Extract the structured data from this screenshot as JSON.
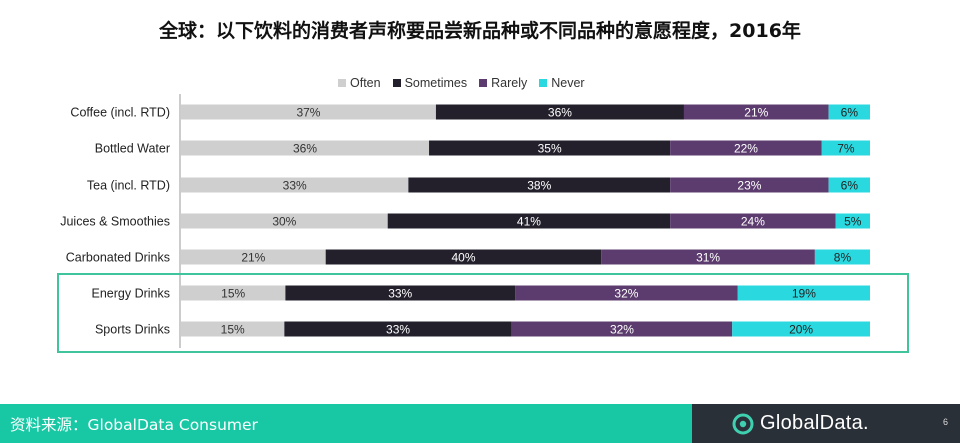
{
  "title": "全球：以下饮料的消费者声称要品尝新品种或不同品种的意愿程度，2016年",
  "legend": {
    "often": "Often",
    "sometimes": "Sometimes",
    "rarely": "Rarely",
    "never": "Never"
  },
  "colors": {
    "often": "#cfcfcf",
    "sometimes": "#23202c",
    "rarely": "#5c3c6e",
    "never": "#2ad8e0",
    "highlight": "#3fc49c",
    "footer": "#18c8a4",
    "footer_dark": "#2a3038"
  },
  "chart_data": {
    "type": "bar",
    "orientation": "horizontal",
    "stacked": true,
    "categories": [
      "Coffee (incl. RTD)",
      "Bottled Water",
      "Tea (incl. RTD)",
      "Juices & Smoothies",
      "Carbonated Drinks",
      "Energy Drinks",
      "Sports Drinks"
    ],
    "series": [
      {
        "name": "Often",
        "values": [
          37,
          36,
          33,
          30,
          21,
          15,
          15
        ]
      },
      {
        "name": "Sometimes",
        "values": [
          36,
          35,
          38,
          41,
          40,
          33,
          33
        ]
      },
      {
        "name": "Rarely",
        "values": [
          21,
          22,
          23,
          24,
          31,
          32,
          32
        ]
      },
      {
        "name": "Never",
        "values": [
          6,
          7,
          6,
          5,
          8,
          19,
          20
        ]
      }
    ],
    "unit": "%",
    "highlighted_categories": [
      "Energy Drinks",
      "Sports Drinks"
    ],
    "legend_position": "top"
  },
  "footer": {
    "source": "资料来源：GlobalData Consumer",
    "brand": "GlobalData.",
    "page_number": "6"
  }
}
